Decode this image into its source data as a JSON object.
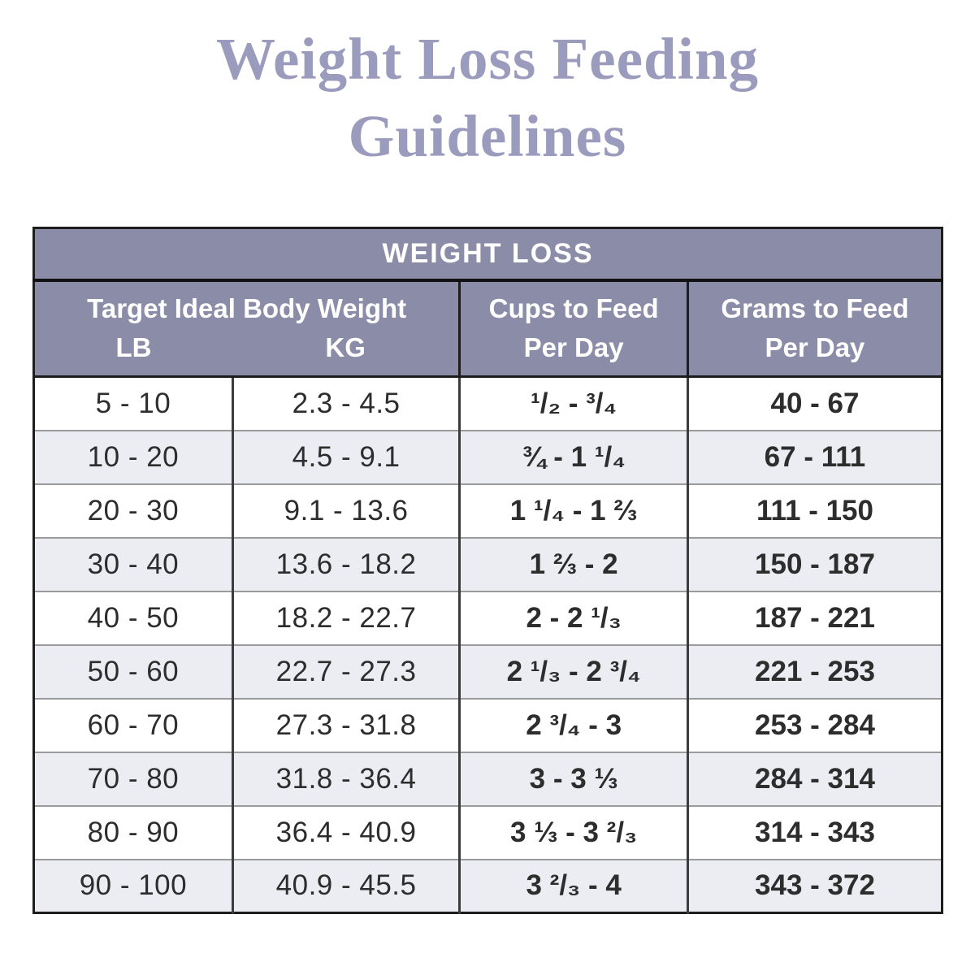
{
  "page": {
    "title_line1": "Weight Loss Feeding",
    "title_line2": "Guidelines"
  },
  "colors": {
    "title_text": "#9b9bbd",
    "header_bg": "#8b8ca7",
    "header_text": "#ffffff",
    "row_alt_bg": "#ececf3",
    "body_text": "#2d2d2d",
    "outer_border": "#1d1d1d"
  },
  "header": {
    "banner": "WEIGHT LOSS",
    "group_title": "Target Ideal Body Weight",
    "col_lb": "LB",
    "col_kg": "KG",
    "col_cups_line1": "Cups to Feed",
    "col_cups_line2": "Per Day",
    "col_grams_line1": "Grams to Feed",
    "col_grams_line2": "Per Day"
  },
  "chart_data": {
    "type": "table",
    "title": "Weight Loss Feeding Guidelines",
    "banner": "WEIGHT LOSS",
    "column_group_header": "Target Ideal Body Weight",
    "columns": [
      "LB",
      "KG",
      "Cups to Feed Per Day",
      "Grams to Feed Per Day"
    ],
    "rows": [
      {
        "lb": "5 - 10",
        "kg": "2.3 - 4.5",
        "cups": "¹/₂ - ³/₄",
        "grams": "40 - 67"
      },
      {
        "lb": "10 - 20",
        "kg": "4.5 - 9.1",
        "cups": "¾ - 1 ¹/₄",
        "grams": "67 - 111"
      },
      {
        "lb": "20 - 30",
        "kg": "9.1 - 13.6",
        "cups": "1 ¹/₄ - 1 ⅔",
        "grams": "111 - 150"
      },
      {
        "lb": "30 - 40",
        "kg": "13.6 - 18.2",
        "cups": "1 ⅔ - 2",
        "grams": "150 - 187"
      },
      {
        "lb": "40 - 50",
        "kg": "18.2 - 22.7",
        "cups": "2 - 2 ¹/₃",
        "grams": "187 - 221"
      },
      {
        "lb": "50 - 60",
        "kg": "22.7 - 27.3",
        "cups": "2 ¹/₃ - 2 ³/₄",
        "grams": "221 - 253"
      },
      {
        "lb": "60 - 70",
        "kg": "27.3 - 31.8",
        "cups": "2 ³/₄ - 3",
        "grams": "253 - 284"
      },
      {
        "lb": "70 - 80",
        "kg": "31.8 - 36.4",
        "cups": "3 - 3 ⅓",
        "grams": "284 - 314"
      },
      {
        "lb": "80 - 90",
        "kg": "36.4 - 40.9",
        "cups": "3 ⅓ - 3 ²/₃",
        "grams": "314 - 343"
      },
      {
        "lb": "90 - 100",
        "kg": "40.9 - 45.5",
        "cups": "3 ²/₃ - 4",
        "grams": "343 - 372"
      }
    ]
  }
}
